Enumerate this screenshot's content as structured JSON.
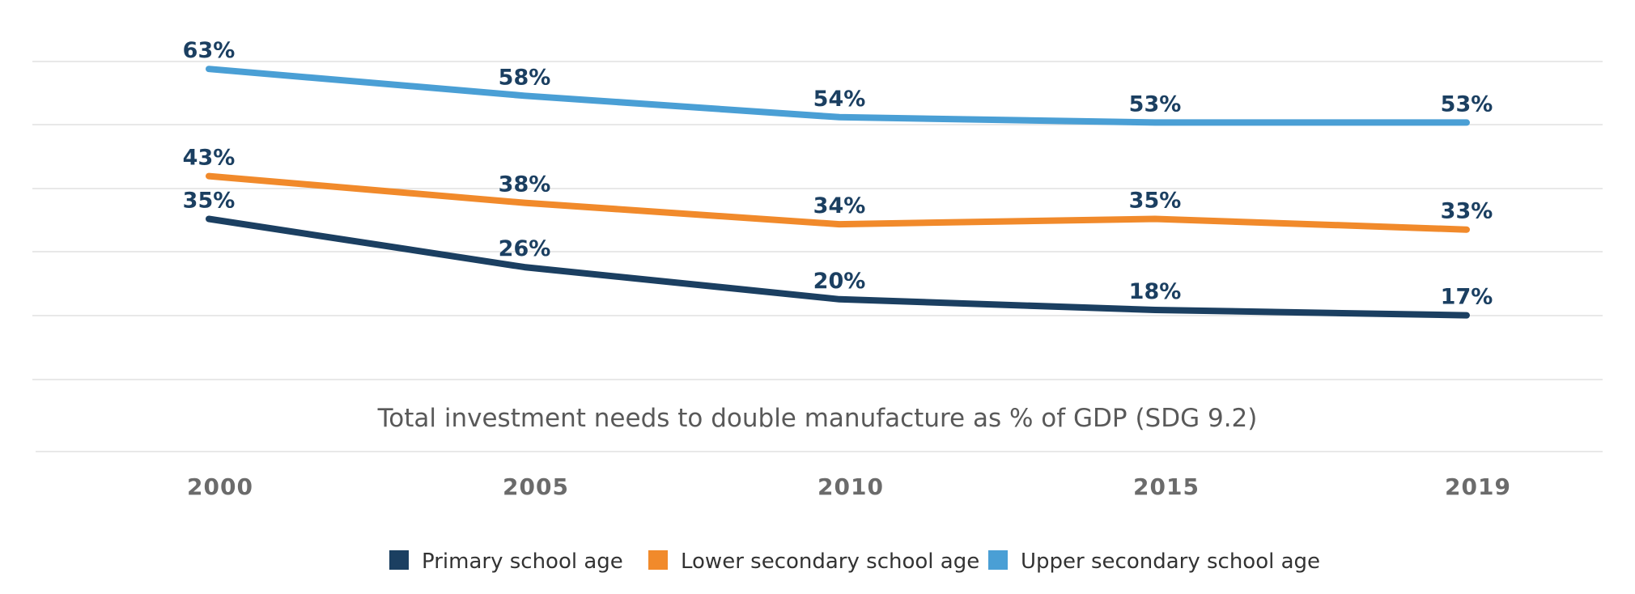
{
  "chart_data": {
    "type": "line",
    "title": "",
    "subtitle": "Total investment needs to double manufacture as % of GDP (SDG 9.2)",
    "x": [
      "2000",
      "2005",
      "2010",
      "2015",
      "2019"
    ],
    "xlabel": "",
    "ylabel": "",
    "ylim": [
      5,
      65
    ],
    "grid": true,
    "legend_position": "bottom",
    "series": [
      {
        "name": "Primary school age",
        "color": "#1b3f61",
        "values": [
          35,
          26,
          20,
          18,
          17
        ],
        "labels": [
          "35%",
          "26%",
          "20%",
          "18%",
          "17%"
        ]
      },
      {
        "name": "Lower secondary school age",
        "color": "#f18a2b",
        "values": [
          43,
          38,
          34,
          35,
          33
        ],
        "labels": [
          "43%",
          "38%",
          "34%",
          "35%",
          "33%"
        ]
      },
      {
        "name": "Upper secondary school age",
        "color": "#4a9fd5",
        "values": [
          63,
          58,
          54,
          53,
          53
        ],
        "labels": [
          "63%",
          "58%",
          "54%",
          "53%",
          "53%"
        ]
      }
    ]
  }
}
